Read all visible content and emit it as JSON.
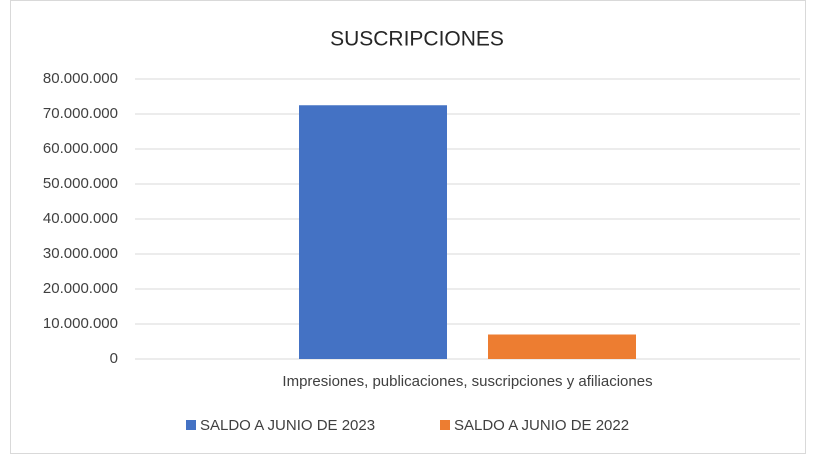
{
  "chart_data": {
    "type": "bar",
    "title": "SUSCRIPCIONES",
    "categories": [
      "Impresiones, publicaciones, suscripciones y afiliaciones"
    ],
    "series": [
      {
        "name": "SALDO A JUNIO DE 2023",
        "color": "#4472c4",
        "values": [
          72500000
        ]
      },
      {
        "name": "SALDO A JUNIO DE 2022",
        "color": "#ed7d31",
        "values": [
          7000000
        ]
      }
    ],
    "ylim": [
      0,
      80000000
    ],
    "yticks": [
      0,
      {
        "value": 10000000,
        "label": "10.000.000"
      },
      {
        "value": 20000000,
        "label": "20.000.000"
      },
      {
        "value": 30000000,
        "label": "30.000.000"
      },
      {
        "value": 40000000,
        "label": "40.000.000"
      },
      {
        "value": 50000000,
        "label": "50.000.000"
      },
      {
        "value": 60000000,
        "label": "60.000.000"
      },
      {
        "value": 70000000,
        "label": "70.000.000"
      },
      {
        "value": 80000000,
        "label": "80.000.000"
      }
    ],
    "grid": true,
    "legend": "bottom"
  }
}
